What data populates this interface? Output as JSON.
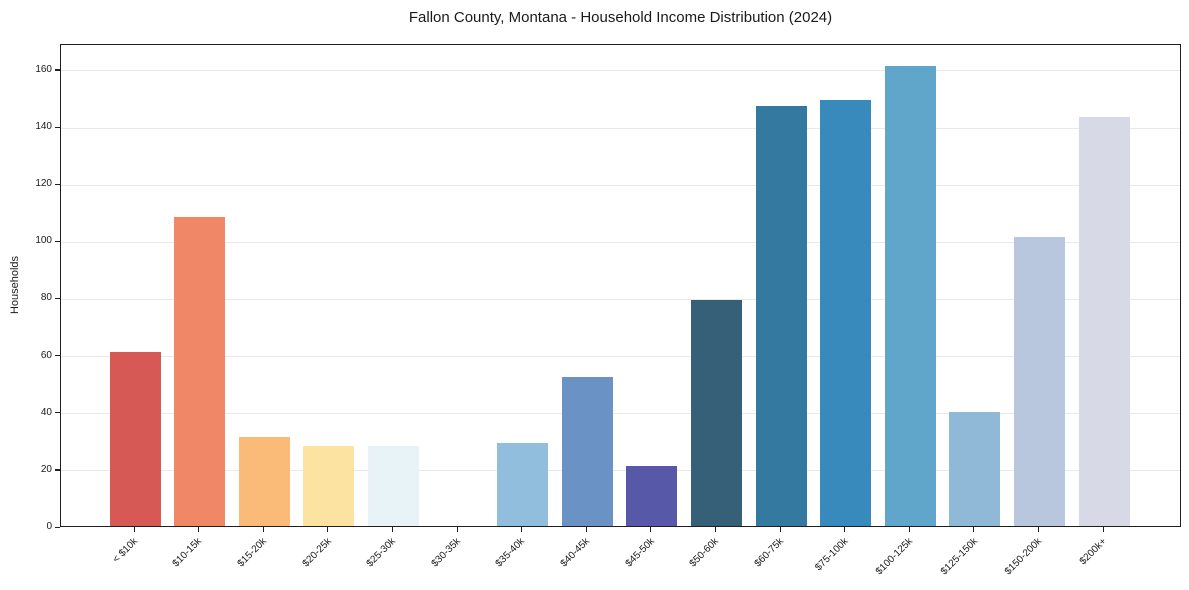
{
  "chart_data": {
    "type": "bar",
    "title": "Fallon County, Montana - Household Income Distribution (2024)",
    "xlabel": "",
    "ylabel": "Households",
    "categories": [
      "< $10k",
      "$10-15k",
      "$15-20k",
      "$20-25k",
      "$25-30k",
      "$30-35k",
      "$35-40k",
      "$40-45k",
      "$45-50k",
      "$50-60k",
      "$60-75k",
      "$75-100k",
      "$100-125k",
      "$125-150k",
      "$150-200k",
      "$200k+"
    ],
    "values": [
      61,
      108,
      31,
      28,
      28,
      0,
      29,
      52,
      21,
      79,
      147,
      149,
      161,
      40,
      101,
      143
    ],
    "bar_colors": [
      "#d65956",
      "#f08868",
      "#f9bb77",
      "#fde3a1",
      "#e7f3f6",
      "#d9edf3",
      "#92bedd",
      "#6a92c5",
      "#5758a7",
      "#366078",
      "#34799f",
      "#378abb",
      "#60a6ca",
      "#90b9d8",
      "#b9c7de",
      "#d8d9e7"
    ],
    "ylim": [
      0,
      169.05
    ],
    "yticks": [
      0,
      20,
      40,
      60,
      80,
      100,
      120,
      140,
      160
    ],
    "grid": "horizontal",
    "gridline_color": "#e9e9e9",
    "axis_color": "#1f1f1f",
    "x_tick_rotation_deg": 45,
    "legend": "none"
  }
}
